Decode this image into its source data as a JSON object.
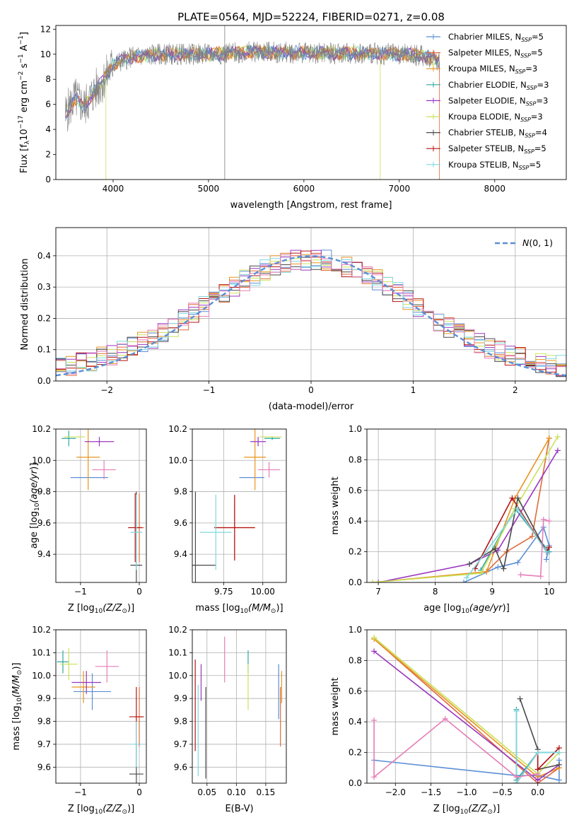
{
  "figure": {
    "title": "PLATE=0564, MJD=52224, FIBERID=0271, z=0.08"
  },
  "colors": {
    "Chabrier MILES": "#5b8fd6",
    "Salpeter MILES": "#e06a3a",
    "Kroupa MILES": "#e8941e",
    "Chabrier ELODIE": "#2fa7a0",
    "Salpeter ELODIE": "#9a36c0",
    "Kroupa ELODIE": "#c9e25a",
    "Chabrier STELIB": "#4a4a4a",
    "Salpeter STELIB": "#b41414",
    "Kroupa STELIB": "#7fd8e0",
    "extra_pink": "#e67eb8",
    "spectrum_data": "#7f7f7f",
    "normal_curve": "#5b8fd6"
  },
  "chart_data": [
    {
      "id": "spectrum",
      "type": "line",
      "title": "PLATE=0564, MJD=52224, FIBERID=0271, z=0.08",
      "xlabel": "wavelength [Angstrom, rest frame]",
      "ylabel": "Flux [f",
      "xlim": [
        3400,
        8750
      ],
      "ylim": [
        0,
        12.3
      ],
      "xticks": [
        4000,
        5000,
        6000,
        7000,
        8000
      ],
      "yticks": [
        0,
        2,
        4,
        6,
        8,
        10,
        12
      ],
      "grid": false,
      "legend_position": "right",
      "legend": [
        "Chabrier MILES, N_SSP=5",
        "Salpeter MILES, N_SSP=5",
        "Kroupa MILES, N_SSP=3",
        "Chabrier ELODIE, N_SSP=3",
        "Salpeter ELODIE, N_SSP=3",
        "Kroupa ELODIE, N_SSP=3",
        "Chabrier STELIB, N_SSP=4",
        "Salpeter STELIB, N_SSP=5",
        "Kroupa STELIB, N_SSP=5"
      ],
      "legend_labels": [
        {
          "pre": "Chabrier MILES, N",
          "sub": "SSP",
          "post": "=5"
        },
        {
          "pre": "Salpeter MILES, N",
          "sub": "SSP",
          "post": "=5"
        },
        {
          "pre": "Kroupa MILES, N",
          "sub": "SSP",
          "post": "=3"
        },
        {
          "pre": "Chabrier ELODIE, N",
          "sub": "SSP",
          "post": "=3"
        },
        {
          "pre": "Salpeter ELODIE, N",
          "sub": "SSP",
          "post": "=3"
        },
        {
          "pre": "Kroupa ELODIE, N",
          "sub": "SSP",
          "post": "=3"
        },
        {
          "pre": "Chabrier STELIB, N",
          "sub": "SSP",
          "post": "=4"
        },
        {
          "pre": "Salpeter STELIB, N",
          "sub": "SSP",
          "post": "=5"
        },
        {
          "pre": "Kroupa STELIB, N",
          "sub": "SSP",
          "post": "=5"
        }
      ],
      "continuum": [
        [
          3500,
          5.2
        ],
        [
          3600,
          6.5
        ],
        [
          3700,
          5.8
        ],
        [
          3800,
          7.0
        ],
        [
          3900,
          7.9
        ],
        [
          4000,
          9.2
        ],
        [
          4200,
          9.8
        ],
        [
          4500,
          10.0
        ],
        [
          5000,
          10.0
        ],
        [
          5500,
          10.2
        ],
        [
          6000,
          10.1
        ],
        [
          6500,
          10.1
        ],
        [
          7000,
          10.0
        ],
        [
          7200,
          9.9
        ],
        [
          7350,
          9.7
        ],
        [
          7420,
          9.4
        ]
      ]
    },
    {
      "id": "residuals",
      "type": "line",
      "xlabel": "(data-model)/error",
      "ylabel": "Normed distribution",
      "xlim": [
        -2.5,
        2.5
      ],
      "ylim": [
        0,
        0.49
      ],
      "xticks": [
        -2,
        -1,
        0,
        1,
        2
      ],
      "yticks": [
        0.0,
        0.1,
        0.2,
        0.3,
        0.4
      ],
      "grid": true,
      "legend_position": "top-right",
      "legend": [
        "N(0,1)"
      ],
      "bin_width": 0.1
    },
    {
      "id": "age_vs_Z",
      "type": "scatter",
      "xlabel_pre": "Z [log",
      "xlabel_post": "(Z/Z",
      "ylabel": "age  [log10(age/yr)]",
      "xlim": [
        -1.42,
        0.12
      ],
      "ylim": [
        9.22,
        10.2
      ],
      "xticks": [
        -1,
        0
      ],
      "yticks": [
        9.4,
        9.6,
        9.8,
        10.0,
        10.2
      ],
      "grid": true,
      "points": [
        {
          "model": "Chabrier MILES",
          "x": -0.85,
          "y": 9.89,
          "xerr": 0.32,
          "yerr": 0.0
        },
        {
          "model": "Salpeter MILES",
          "x": 0.0,
          "y": 9.57,
          "xerr": 0.08,
          "yerr": 0.22
        },
        {
          "model": "Kroupa MILES",
          "x": -0.87,
          "y": 10.02,
          "xerr": 0.2,
          "yerr": 0.21
        },
        {
          "model": "Chabrier ELODIE",
          "x": -1.2,
          "y": 10.14,
          "xerr": 0.12,
          "yerr": 0.05
        },
        {
          "model": "Salpeter ELODIE",
          "x": -0.68,
          "y": 10.12,
          "xerr": 0.25,
          "yerr": 0.03
        },
        {
          "model": "Kroupa ELODIE",
          "x": -1.1,
          "y": 10.15,
          "xerr": 0.18,
          "yerr": 0.0
        },
        {
          "model": "Chabrier STELIB",
          "x": -0.05,
          "y": 9.33,
          "xerr": 0.1,
          "yerr": 0.47
        },
        {
          "model": "Salpeter STELIB",
          "x": -0.07,
          "y": 9.57,
          "xerr": 0.12,
          "yerr": 0.22
        },
        {
          "model": "Kroupa STELIB",
          "x": -0.05,
          "y": 9.54,
          "xerr": 0.1,
          "yerr": 0.24
        },
        {
          "model": "extra_pink",
          "x": -0.6,
          "y": 9.94,
          "xerr": 0.2,
          "yerr": 0.06
        }
      ]
    },
    {
      "id": "age_vs_mass",
      "type": "scatter",
      "xlabel_pre": "mass [log",
      "xlabel_post": "(M/M",
      "ylabel": "",
      "xlim": [
        9.55,
        10.15
      ],
      "ylim": [
        9.22,
        10.2
      ],
      "xticks": [
        9.75,
        10.0
      ],
      "xticklabels": [
        "9.75",
        "10.00"
      ],
      "yticks": [
        9.4,
        9.6,
        9.8,
        10.0,
        10.2
      ],
      "grid": true,
      "points": [
        {
          "model": "Chabrier MILES",
          "x": 9.93,
          "y": 9.89,
          "xerr": 0.08,
          "yerr": 0.0
        },
        {
          "model": "Salpeter MILES",
          "x": 9.82,
          "y": 9.57,
          "xerr": 0.13,
          "yerr": 0.2
        },
        {
          "model": "Kroupa MILES",
          "x": 9.95,
          "y": 10.02,
          "xerr": 0.07,
          "yerr": 0.21
        },
        {
          "model": "Chabrier ELODIE",
          "x": 10.06,
          "y": 10.14,
          "xerr": 0.05,
          "yerr": 0.01
        },
        {
          "model": "Salpeter ELODIE",
          "x": 9.97,
          "y": 10.12,
          "xerr": 0.05,
          "yerr": 0.03
        },
        {
          "model": "Kroupa ELODIE",
          "x": 10.05,
          "y": 10.15,
          "xerr": 0.07,
          "yerr": 0.0
        },
        {
          "model": "Chabrier STELIB",
          "x": 9.57,
          "y": 9.33,
          "xerr": 0.13,
          "yerr": 0.47
        },
        {
          "model": "Salpeter STELIB",
          "x": 9.82,
          "y": 9.57,
          "xerr": 0.13,
          "yerr": 0.21
        },
        {
          "model": "Kroupa STELIB",
          "x": 9.7,
          "y": 9.54,
          "xerr": 0.1,
          "yerr": 0.24
        },
        {
          "model": "extra_pink",
          "x": 10.04,
          "y": 9.94,
          "xerr": 0.07,
          "yerr": 0.05
        }
      ]
    },
    {
      "id": "weight_vs_age",
      "type": "line",
      "xlabel": "age  [log10(age/yr)]",
      "ylabel": "mass weight",
      "xlim": [
        6.8,
        10.3
      ],
      "ylim": [
        0,
        1.0
      ],
      "xticks": [
        7,
        8,
        9,
        10
      ],
      "yticks": [
        0.0,
        0.2,
        0.4,
        0.6,
        0.8,
        1.0
      ],
      "grid": true,
      "series": [
        {
          "model": "Chabrier MILES",
          "points": [
            [
              8.5,
              0.0
            ],
            [
              9.1,
              0.1
            ],
            [
              9.45,
              0.13
            ],
            [
              9.9,
              0.36
            ],
            [
              10.0,
              0.24
            ],
            [
              9.95,
              0.15
            ]
          ]
        },
        {
          "model": "Salpeter MILES",
          "points": [
            [
              8.9,
              0.07
            ],
            [
              9.25,
              0.2
            ],
            [
              9.7,
              0.3
            ],
            [
              10.0,
              0.94
            ]
          ]
        },
        {
          "model": "Kroupa MILES",
          "points": [
            [
              6.9,
              0.0
            ],
            [
              8.9,
              0.07
            ],
            [
              9.4,
              0.55
            ],
            [
              10.0,
              0.94
            ]
          ]
        },
        {
          "model": "Chabrier ELODIE",
          "points": [
            [
              8.8,
              0.08
            ],
            [
              9.4,
              0.48
            ],
            [
              10.0,
              0.2
            ]
          ]
        },
        {
          "model": "Salpeter ELODIE",
          "points": [
            [
              7.0,
              0.0
            ],
            [
              8.6,
              0.12
            ],
            [
              9.1,
              0.21
            ],
            [
              10.15,
              0.86
            ]
          ]
        },
        {
          "model": "Kroupa ELODIE",
          "points": [
            [
              6.9,
              0.0
            ],
            [
              8.8,
              0.06
            ],
            [
              9.4,
              0.48
            ],
            [
              10.15,
              0.95
            ]
          ]
        },
        {
          "model": "Chabrier STELIB",
          "points": [
            [
              8.6,
              0.12
            ],
            [
              9.05,
              0.22
            ],
            [
              9.2,
              0.09
            ],
            [
              9.45,
              0.55
            ],
            [
              9.95,
              0.2
            ]
          ]
        },
        {
          "model": "Salpeter STELIB",
          "points": [
            [
              8.7,
              0.09
            ],
            [
              9.35,
              0.55
            ],
            [
              9.95,
              0.2
            ],
            [
              10.0,
              0.23
            ]
          ]
        },
        {
          "model": "Kroupa STELIB",
          "points": [
            [
              8.55,
              0.03
            ],
            [
              9.45,
              0.48
            ],
            [
              9.95,
              0.2
            ]
          ]
        },
        {
          "model": "extra_pink",
          "points": [
            [
              9.5,
              0.05
            ],
            [
              9.85,
              0.04
            ],
            [
              9.9,
              0.41
            ],
            [
              10.0,
              0.4
            ]
          ]
        }
      ]
    },
    {
      "id": "mass_vs_Z",
      "type": "scatter",
      "xlabel_pre": "Z [log",
      "xlabel_post": "(Z/Z",
      "ylabel_pre": "mass [log",
      "ylabel_post": "(M/M",
      "xlim": [
        -1.42,
        0.12
      ],
      "ylim": [
        9.53,
        10.2
      ],
      "xticks": [
        -1,
        0
      ],
      "yticks": [
        9.6,
        9.7,
        9.8,
        9.9,
        10.0,
        10.1,
        10.2
      ],
      "grid": true,
      "points": [
        {
          "model": "Chabrier MILES",
          "x": -0.8,
          "y": 9.93,
          "xerr": 0.32,
          "yerr": 0.08
        },
        {
          "model": "Salpeter MILES",
          "x": 0.0,
          "y": 9.82,
          "xerr": 0.08,
          "yerr": 0.13
        },
        {
          "model": "Kroupa MILES",
          "x": -0.95,
          "y": 9.95,
          "xerr": 0.2,
          "yerr": 0.07
        },
        {
          "model": "Chabrier ELODIE",
          "x": -1.3,
          "y": 10.06,
          "xerr": 0.1,
          "yerr": 0.05
        },
        {
          "model": "Salpeter ELODIE",
          "x": -0.9,
          "y": 9.97,
          "xerr": 0.25,
          "yerr": 0.05
        },
        {
          "model": "Kroupa ELODIE",
          "x": -1.2,
          "y": 10.05,
          "xerr": 0.15,
          "yerr": 0.07
        },
        {
          "model": "Chabrier STELIB",
          "x": -0.05,
          "y": 9.57,
          "xerr": 0.12,
          "yerr": 0.13
        },
        {
          "model": "Salpeter STELIB",
          "x": -0.05,
          "y": 9.82,
          "xerr": 0.12,
          "yerr": 0.13
        },
        {
          "model": "Kroupa STELIB",
          "x": -0.05,
          "y": 9.7,
          "xerr": 0.1,
          "yerr": 0.1
        },
        {
          "model": "extra_pink",
          "x": -0.55,
          "y": 10.04,
          "xerr": 0.2,
          "yerr": 0.07
        }
      ]
    },
    {
      "id": "mass_vs_EBV",
      "type": "scatter",
      "xlabel": "E(B-V)",
      "xlim": [
        0.025,
        0.185
      ],
      "ylim": [
        9.53,
        10.2
      ],
      "xticks": [
        0.05,
        0.1,
        0.15
      ],
      "xticklabels": [
        "0.05",
        "0.10",
        "0.15"
      ],
      "yticks": [
        9.6,
        9.7,
        9.8,
        9.9,
        10.0,
        10.1,
        10.2
      ],
      "grid": true,
      "points": [
        {
          "model": "Chabrier MILES",
          "x": 0.172,
          "y": 9.93,
          "xerr": 0.0,
          "yerr": 0.12
        },
        {
          "model": "Salpeter MILES",
          "x": 0.175,
          "y": 9.82,
          "xerr": 0.0,
          "yerr": 0.13
        },
        {
          "model": "Kroupa MILES",
          "x": 0.177,
          "y": 9.95,
          "xerr": 0.0,
          "yerr": 0.07
        },
        {
          "model": "Chabrier ELODIE",
          "x": 0.12,
          "y": 10.06,
          "xerr": 0.0,
          "yerr": 0.05
        },
        {
          "model": "Salpeter ELODIE",
          "x": 0.04,
          "y": 9.97,
          "xerr": 0.0,
          "yerr": 0.08
        },
        {
          "model": "Kroupa ELODIE",
          "x": 0.12,
          "y": 9.95,
          "xerr": 0.0,
          "yerr": 0.1
        },
        {
          "model": "Chabrier STELIB",
          "x": 0.048,
          "y": 9.75,
          "xerr": 0.0,
          "yerr": 0.2
        },
        {
          "model": "Salpeter STELIB",
          "x": 0.03,
          "y": 9.87,
          "xerr": 0.0,
          "yerr": 0.2
        },
        {
          "model": "Kroupa STELIB",
          "x": 0.035,
          "y": 9.76,
          "xerr": 0.0,
          "yerr": 0.2
        },
        {
          "model": "extra_pink",
          "x": 0.08,
          "y": 10.07,
          "xerr": 0.0,
          "yerr": 0.1
        }
      ]
    },
    {
      "id": "weight_vs_Z",
      "type": "line",
      "xlabel_pre": "Z [log",
      "xlabel_post": "(Z/Z",
      "ylabel": "mass weight",
      "xlim": [
        -2.4,
        0.4
      ],
      "ylim": [
        0,
        1.0
      ],
      "xticks": [
        -2.0,
        -1.5,
        -1.0,
        -0.5,
        0.0
      ],
      "xticklabels": [
        "−2.0",
        "−1.5",
        "−1.0",
        "−0.5",
        "0.0"
      ],
      "yticks": [
        0.0,
        0.2,
        0.4,
        0.6,
        0.8,
        1.0
      ],
      "grid": true,
      "series": [
        {
          "model": "Chabrier MILES",
          "points": [
            [
              -2.3,
              0.15
            ],
            [
              -0.3,
              0.05
            ],
            [
              0.0,
              0.05
            ],
            [
              0.3,
              0.02
            ],
            [
              0.3,
              0.15
            ]
          ]
        },
        {
          "model": "Salpeter MILES",
          "points": [
            [
              -2.3,
              0.94
            ],
            [
              0.0,
              0.0
            ],
            [
              0.3,
              0.1
            ]
          ]
        },
        {
          "model": "Kroupa MILES",
          "points": [
            [
              -2.3,
              0.94
            ],
            [
              0.0,
              0.04
            ],
            [
              0.3,
              0.1
            ]
          ]
        },
        {
          "model": "Chabrier ELODIE",
          "points": [
            [
              -0.3,
              0.48
            ],
            [
              -0.3,
              0.02
            ],
            [
              0.0,
              0.2
            ],
            [
              0.3,
              0.2
            ]
          ]
        },
        {
          "model": "Salpeter ELODIE",
          "points": [
            [
              -2.3,
              0.86
            ],
            [
              0.0,
              0.02
            ],
            [
              0.3,
              0.12
            ]
          ]
        },
        {
          "model": "Kroupa ELODIE",
          "points": [
            [
              -2.3,
              0.95
            ],
            [
              0.0,
              0.06
            ],
            [
              0.3,
              0.2
            ]
          ]
        },
        {
          "model": "Chabrier STELIB",
          "points": [
            [
              -0.25,
              0.55
            ],
            [
              0.0,
              0.22
            ],
            [
              0.0,
              0.09
            ],
            [
              0.3,
              0.12
            ]
          ]
        },
        {
          "model": "Salpeter STELIB",
          "points": [
            [
              -0.3,
              0.0
            ],
            [
              0.0,
              0.2
            ],
            [
              0.0,
              0.09
            ],
            [
              0.3,
              0.23
            ]
          ]
        },
        {
          "model": "Kroupa STELIB",
          "points": [
            [
              -0.3,
              0.47
            ],
            [
              -0.3,
              0.0
            ],
            [
              0.0,
              0.2
            ],
            [
              0.3,
              0.2
            ]
          ]
        },
        {
          "model": "extra_pink",
          "points": [
            [
              -2.3,
              0.41
            ],
            [
              -2.3,
              0.04
            ],
            [
              -1.3,
              0.42
            ],
            [
              -0.3,
              0.04
            ],
            [
              0.0,
              0.06
            ]
          ]
        }
      ]
    }
  ]
}
